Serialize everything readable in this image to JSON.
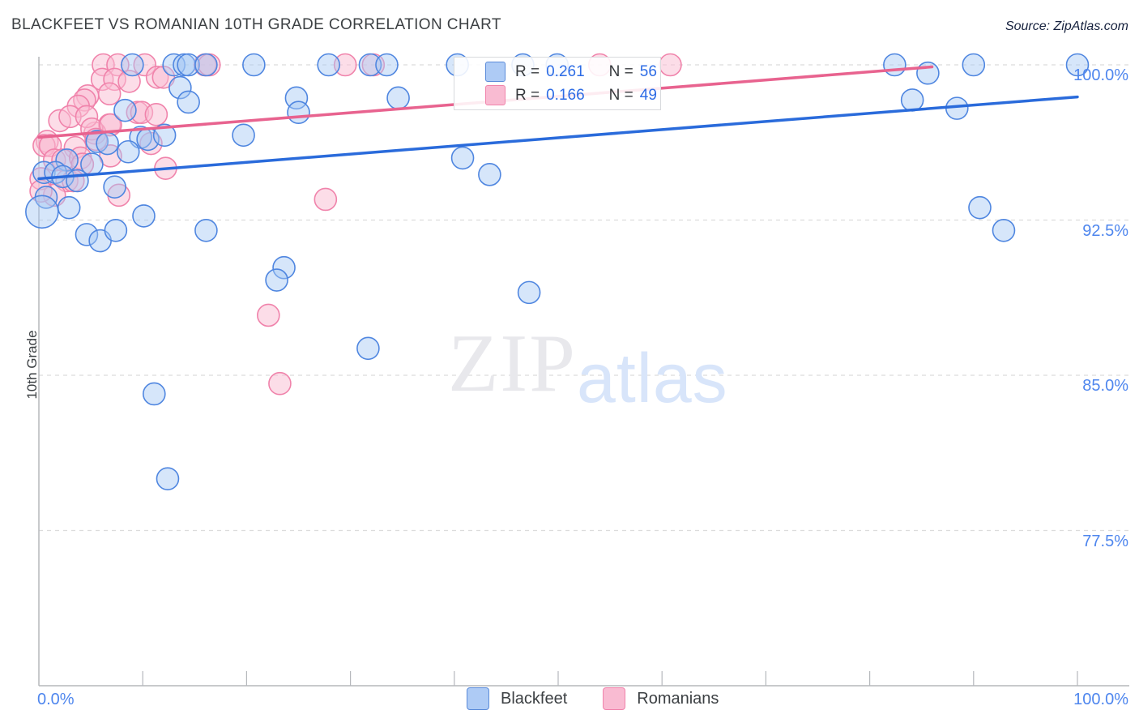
{
  "header": {
    "title": "BLACKFEET VS ROMANIAN 10TH GRADE CORRELATION CHART",
    "source": "Source: ZipAtlas.com"
  },
  "watermark": {
    "zip": "ZIP",
    "atlas": "atlas"
  },
  "stats_legend": {
    "rows": [
      {
        "series": "blackfeet",
        "r_label": "R = ",
        "r_value": "0.261",
        "n_label": "N = ",
        "n_value": "56"
      },
      {
        "series": "romanians",
        "r_label": "R = ",
        "r_value": "0.166",
        "n_label": "N = ",
        "n_value": "49"
      }
    ]
  },
  "bottom_legend": {
    "blackfeet_label": "Blackfeet",
    "romanians_label": "Romanians"
  },
  "colors": {
    "blue_stroke": "#4f86e0",
    "blue_fill": "rgba(164,199,244,0.45)",
    "pink_stroke": "#f083ab",
    "pink_fill": "rgba(249,187,210,0.5)",
    "blue_trend": "#2a6bdb",
    "pink_trend": "#e8638f",
    "grid": "#dcdcdc",
    "axis": "#b5b8bc",
    "tick_label": "#4e86ee"
  },
  "chart_data": {
    "type": "scatter",
    "title": "BLACKFEET VS ROMANIAN 10TH GRADE CORRELATION CHART",
    "xlabel": "",
    "ylabel": "10th Grade",
    "xlim": [
      0,
      100
    ],
    "ylim": [
      70,
      101
    ],
    "x_axis_labels": {
      "min": "0.0%",
      "max": "100.0%"
    },
    "y_ticks": [
      {
        "value": 100.0,
        "label": "100.0%"
      },
      {
        "value": 92.5,
        "label": "92.5%"
      },
      {
        "value": 85.0,
        "label": "85.0%"
      },
      {
        "value": 77.5,
        "label": "77.5%"
      }
    ],
    "x_minor_ticks": [
      10,
      20,
      30,
      40,
      50,
      60,
      70,
      80,
      90,
      100
    ],
    "grid": "dashed-horizontal",
    "legend_position": "top-center",
    "series": [
      {
        "name": "Blackfeet",
        "R": 0.261,
        "N": 56,
        "points": [
          [
            9.0,
            100
          ],
          [
            13.0,
            100
          ],
          [
            14.0,
            100
          ],
          [
            14.4,
            100
          ],
          [
            16.1,
            100
          ],
          [
            20.7,
            100
          ],
          [
            27.9,
            100
          ],
          [
            31.9,
            100
          ],
          [
            33.5,
            100
          ],
          [
            40.3,
            100
          ],
          [
            46.6,
            100
          ],
          [
            49.9,
            100
          ],
          [
            82.4,
            100
          ],
          [
            90.0,
            100
          ],
          [
            100.0,
            100
          ],
          [
            85.6,
            99.6
          ],
          [
            13.6,
            98.9
          ],
          [
            24.8,
            98.4
          ],
          [
            34.6,
            98.4
          ],
          [
            84.1,
            98.3
          ],
          [
            14.4,
            98.2
          ],
          [
            25.0,
            97.7
          ],
          [
            88.4,
            97.9
          ],
          [
            19.7,
            96.6
          ],
          [
            40.8,
            95.5
          ],
          [
            43.4,
            94.7
          ],
          [
            8.3,
            97.8
          ],
          [
            9.8,
            96.5
          ],
          [
            10.5,
            96.4
          ],
          [
            12.1,
            96.6
          ],
          [
            5.6,
            96.3
          ],
          [
            6.6,
            96.2
          ],
          [
            8.6,
            95.8
          ],
          [
            2.7,
            95.4
          ],
          [
            5.1,
            95.2
          ],
          [
            0.5,
            94.8
          ],
          [
            1.6,
            94.8
          ],
          [
            2.3,
            94.6
          ],
          [
            3.7,
            94.4
          ],
          [
            7.3,
            94.1
          ],
          [
            0.7,
            93.6
          ],
          [
            2.9,
            93.1
          ],
          [
            0.3,
            92.9,
            20
          ],
          [
            10.1,
            92.7
          ],
          [
            4.6,
            91.8
          ],
          [
            5.9,
            91.5
          ],
          [
            7.4,
            92.0
          ],
          [
            16.1,
            92.0
          ],
          [
            90.6,
            93.1
          ],
          [
            92.9,
            92.0
          ],
          [
            23.6,
            90.2
          ],
          [
            22.9,
            89.6
          ],
          [
            31.7,
            86.3
          ],
          [
            47.2,
            89.0
          ],
          [
            11.1,
            84.1
          ],
          [
            12.4,
            80.0
          ]
        ],
        "trend": {
          "x1": 0,
          "y1": 94.5,
          "x2": 100,
          "y2": 98.45
        }
      },
      {
        "name": "Romanians",
        "R": 0.166,
        "N": 49,
        "points": [
          [
            6.2,
            100
          ],
          [
            7.6,
            100
          ],
          [
            10.2,
            100
          ],
          [
            16.0,
            100
          ],
          [
            16.4,
            100
          ],
          [
            29.5,
            100
          ],
          [
            32.2,
            100
          ],
          [
            54.0,
            100
          ],
          [
            60.8,
            100
          ],
          [
            6.1,
            99.3
          ],
          [
            7.3,
            99.3
          ],
          [
            11.4,
            99.4
          ],
          [
            12.0,
            99.4
          ],
          [
            8.7,
            99.2
          ],
          [
            6.8,
            98.6
          ],
          [
            4.7,
            98.5
          ],
          [
            4.4,
            98.3
          ],
          [
            3.8,
            98.0
          ],
          [
            9.5,
            97.7
          ],
          [
            9.9,
            97.7
          ],
          [
            11.3,
            97.6
          ],
          [
            6.8,
            97.1
          ],
          [
            5.4,
            96.7
          ],
          [
            2.0,
            97.3
          ],
          [
            3.0,
            97.5
          ],
          [
            4.6,
            97.5
          ],
          [
            5.1,
            96.9
          ],
          [
            6.9,
            97.1
          ],
          [
            0.8,
            96.3
          ],
          [
            0.5,
            96.1
          ],
          [
            1.1,
            96.1
          ],
          [
            3.5,
            96.0
          ],
          [
            5.5,
            96.4
          ],
          [
            6.9,
            95.6
          ],
          [
            12.2,
            95.0
          ],
          [
            1.5,
            95.4
          ],
          [
            2.3,
            95.4
          ],
          [
            4.0,
            95.5
          ],
          [
            4.2,
            95.2
          ],
          [
            10.8,
            96.2
          ],
          [
            0.2,
            94.5
          ],
          [
            2.7,
            94.4
          ],
          [
            3.3,
            94.4
          ],
          [
            1.5,
            93.7
          ],
          [
            0.2,
            93.9
          ],
          [
            7.7,
            93.7
          ],
          [
            27.6,
            93.5
          ],
          [
            22.1,
            87.9
          ],
          [
            23.2,
            84.6
          ]
        ],
        "trend": {
          "x1": 0,
          "y1": 96.5,
          "x2": 86,
          "y2": 99.9
        }
      }
    ]
  }
}
